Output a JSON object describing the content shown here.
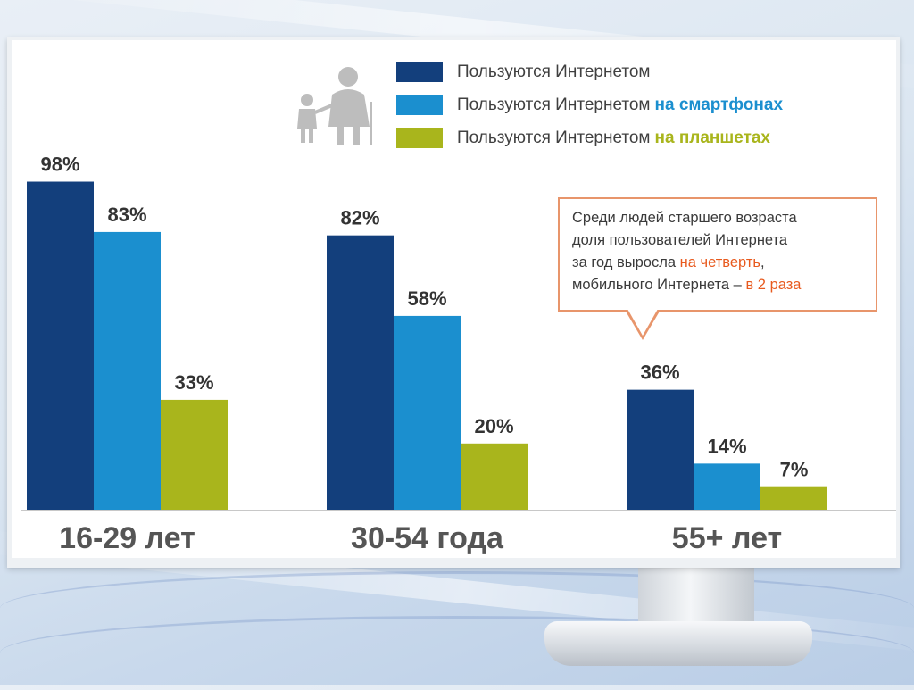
{
  "chart_data": {
    "type": "bar",
    "categories": [
      "16-29 лет",
      "30-54 года",
      "55+ лет"
    ],
    "series": [
      {
        "name": "Пользуются Интернетом",
        "color": "#133f7c",
        "values": [
          98,
          82,
          36
        ],
        "labels": [
          "98%",
          "82%",
          "36%"
        ]
      },
      {
        "name": "Пользуются Интернетом на смартфонах",
        "color": "#1b8fcf",
        "values": [
          83,
          58,
          14
        ],
        "labels": [
          "83%",
          "58%",
          "14%"
        ]
      },
      {
        "name": "Пользуются Интернетом на планшетах",
        "color": "#a9b51c",
        "values": [
          33,
          20,
          7
        ],
        "labels": [
          "33%",
          "20%",
          "7%"
        ]
      }
    ],
    "ylim": [
      0,
      100
    ],
    "grid": false,
    "legend_position": "top-right"
  },
  "legend": {
    "items": [
      {
        "base": "Пользуются Интернетом",
        "accent": "",
        "color": "#133f7c",
        "accent_color": "#404040"
      },
      {
        "base": "Пользуются Интернетом",
        "accent": "на смартфонах",
        "color": "#1b8fcf",
        "accent_color": "#1b8fcf"
      },
      {
        "base": "Пользуются Интернетом",
        "accent": "на планшетах",
        "color": "#a9b51c",
        "accent_color": "#a9b51c"
      }
    ]
  },
  "callout": {
    "line1": "Среди людей старшего возраста",
    "line2": "доля пользователей Интернета",
    "line3_prefix": "за год выросла ",
    "line3_highlight": "на четверть",
    "line3_suffix": ",",
    "line4_prefix": "мобильного Интернета – ",
    "line4_highlight": "в 2 раза"
  },
  "icons": {
    "people": "elderly-woman-and-child-icon"
  }
}
